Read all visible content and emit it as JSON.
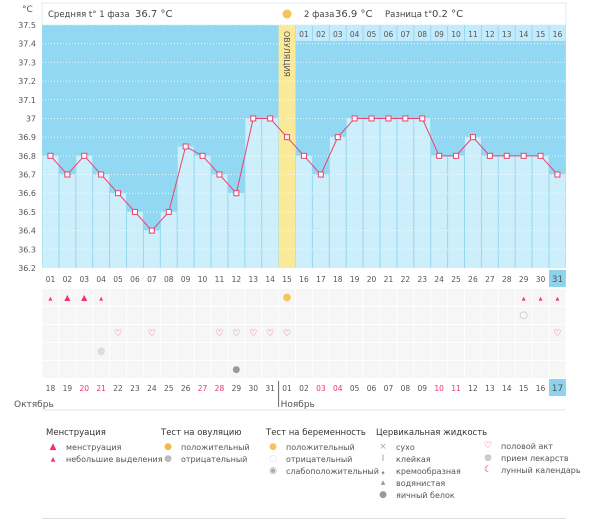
{
  "header": {
    "phase1": "Средняя t° 1 фаза",
    "phase1_value": "36.7 °C",
    "phase2": "2 фаза",
    "phase2_value": "36.9 °C",
    "diff": "Разница t°",
    "diff_value": "0.2 °C",
    "ovulation_label": "ОВУЛЯЦИЯ"
  },
  "colors": {
    "bg": "#93d8f2",
    "bar": "#cdeefb",
    "line": "#e8436e",
    "ovulation": "#fbe99a",
    "highlight": "#8ed3ee",
    "red": "#f0346b"
  },
  "chart_data": {
    "type": "line",
    "ylabel": "°C",
    "ylim": [
      36.2,
      37.5
    ],
    "yticks": [
      "37.5",
      "37.4",
      "37.3",
      "37.2",
      "37.1",
      "37",
      "36.9",
      "36.8",
      "36.7",
      "36.6",
      "36.5",
      "36.4",
      "36.3",
      "36.2"
    ],
    "cycle_days": [
      "01",
      "02",
      "03",
      "04",
      "05",
      "06",
      "07",
      "08",
      "09",
      "10",
      "11",
      "12",
      "13",
      "14",
      "15",
      "16",
      "17",
      "18",
      "19",
      "20",
      "21",
      "22",
      "23",
      "24",
      "25",
      "26",
      "27",
      "28",
      "29",
      "30",
      "31"
    ],
    "phase2_days": [
      "01",
      "02",
      "03",
      "04",
      "05",
      "06",
      "07",
      "08",
      "09",
      "10",
      "11",
      "12",
      "13",
      "14",
      "15",
      "16"
    ],
    "values": [
      36.8,
      36.7,
      36.8,
      36.7,
      36.6,
      36.5,
      36.4,
      36.5,
      36.85,
      36.8,
      36.7,
      36.6,
      37.0,
      37.0,
      36.9,
      36.8,
      36.7,
      36.9,
      37.0,
      37.0,
      37.0,
      37.0,
      37.0,
      36.8,
      36.8,
      36.9,
      36.8,
      36.8,
      36.8,
      36.8,
      36.7
    ],
    "ovulation_day": 15,
    "dates": [
      "18",
      "19",
      "20",
      "21",
      "22",
      "23",
      "24",
      "25",
      "26",
      "27",
      "28",
      "29",
      "30",
      "31",
      "01",
      "02",
      "03",
      "04",
      "05",
      "06",
      "07",
      "08",
      "09",
      "10",
      "11",
      "12",
      "13",
      "14",
      "15",
      "16",
      "17"
    ],
    "weekend_dates": [
      3,
      4,
      10,
      11,
      17,
      18,
      24,
      25
    ],
    "months": [
      "Октябрь",
      "Ноябрь"
    ],
    "events": {
      "menstruation_small": [
        1,
        4,
        29,
        30,
        31
      ],
      "menstruation": [
        2,
        3
      ],
      "ovulation_test_positive": [
        15
      ],
      "pregnancy_test_negative": [
        29
      ],
      "intercourse": [
        5,
        7,
        11,
        12,
        13,
        14,
        15,
        31
      ],
      "medication": [
        4
      ],
      "egg_white": [
        12
      ]
    }
  },
  "legend": {
    "menstruation": {
      "title": "Менструация",
      "items": [
        "менструация",
        "небольшие выделения"
      ]
    },
    "ovulation_test": {
      "title": "Тест на овуляцию",
      "items": [
        "положительный",
        "отрицательный"
      ]
    },
    "pregnancy_test": {
      "title": "Тест на беременность",
      "items": [
        "положительный",
        "отрицательный",
        "слабоположительный"
      ]
    },
    "cervical": {
      "title": "Цервикальная жидкость",
      "items": [
        "сухо",
        "клейкая",
        "кремообразная",
        "водянистая",
        "яичный белок"
      ]
    },
    "other": {
      "items": [
        "половой акт",
        "прием лекарств",
        "лунный календарь"
      ]
    }
  }
}
